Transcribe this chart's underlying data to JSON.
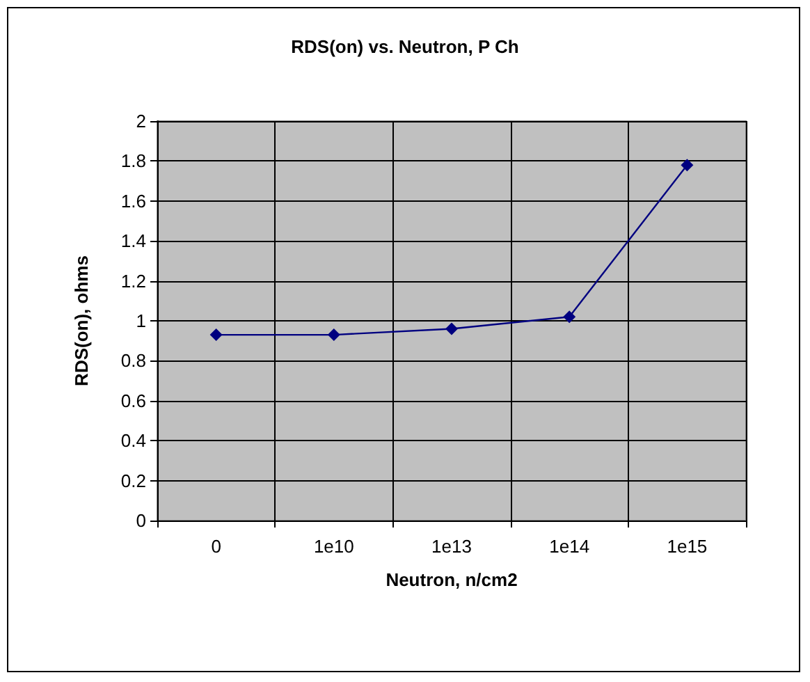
{
  "chart_data": {
    "type": "line",
    "title": "RDS(on) vs. Neutron, P Ch",
    "xlabel": "Neutron, n/cm2",
    "ylabel": "RDS(on), ohms",
    "categories": [
      "0",
      "1e10",
      "1e13",
      "1e14",
      "1e15"
    ],
    "series": [
      {
        "color": "#000080",
        "values": [
          0.93,
          0.93,
          0.96,
          1.02,
          1.78
        ]
      }
    ],
    "ylim": [
      0,
      2
    ],
    "yticks": [
      0,
      0.2,
      0.4,
      0.6,
      0.8,
      1,
      1.2,
      1.4,
      1.6,
      1.8,
      2
    ],
    "grid": true,
    "marker": "diamond",
    "line_style": "solid"
  }
}
